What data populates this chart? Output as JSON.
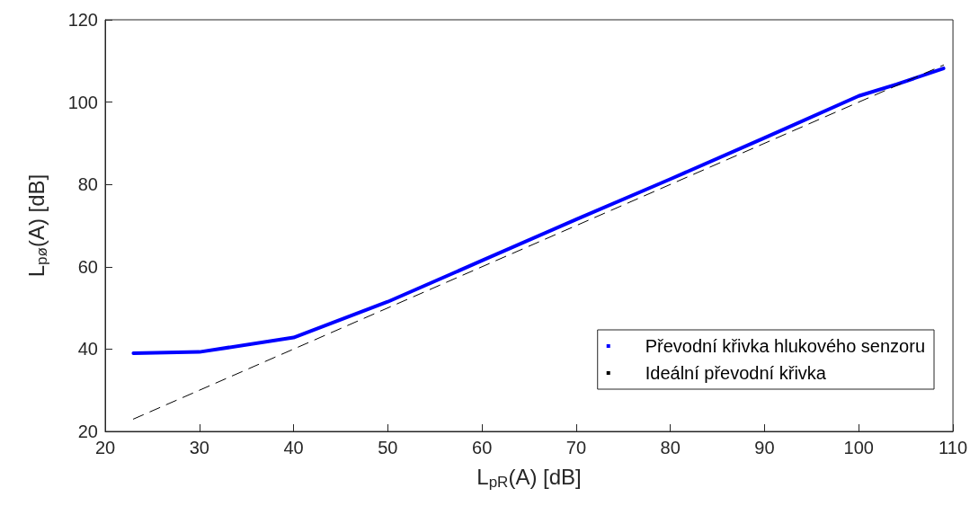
{
  "chart_data": {
    "type": "line",
    "xlabel": "L$_{pR}$(A) [dB]",
    "ylabel": "L$_{pø}$(A) [dB]",
    "xlim": [
      20,
      110
    ],
    "xticks": [
      20,
      30,
      40,
      50,
      60,
      70,
      80,
      90,
      100,
      110
    ],
    "ylim": [
      20,
      120
    ],
    "yticks": [
      20,
      40,
      60,
      80,
      100,
      120
    ],
    "grid": false,
    "legend": "bottom right",
    "marker": "none",
    "series": [
      {
        "name": "Převodní křivka hlukového senzoru",
        "color": "#0000ff",
        "line_style": "solid",
        "x": [
          23,
          30,
          40,
          50,
          60,
          70,
          80,
          90,
          100,
          104,
          109
        ],
        "values": [
          39,
          39.3,
          42.8,
          51.5,
          61.5,
          71.5,
          81.3,
          91.3,
          101.5,
          104.3,
          108.2
        ]
      },
      {
        "name": "Ideální převodní křivka",
        "color": "#000000",
        "line_style": "dashed",
        "x": [
          23,
          109
        ],
        "values": [
          23,
          109
        ]
      }
    ]
  }
}
